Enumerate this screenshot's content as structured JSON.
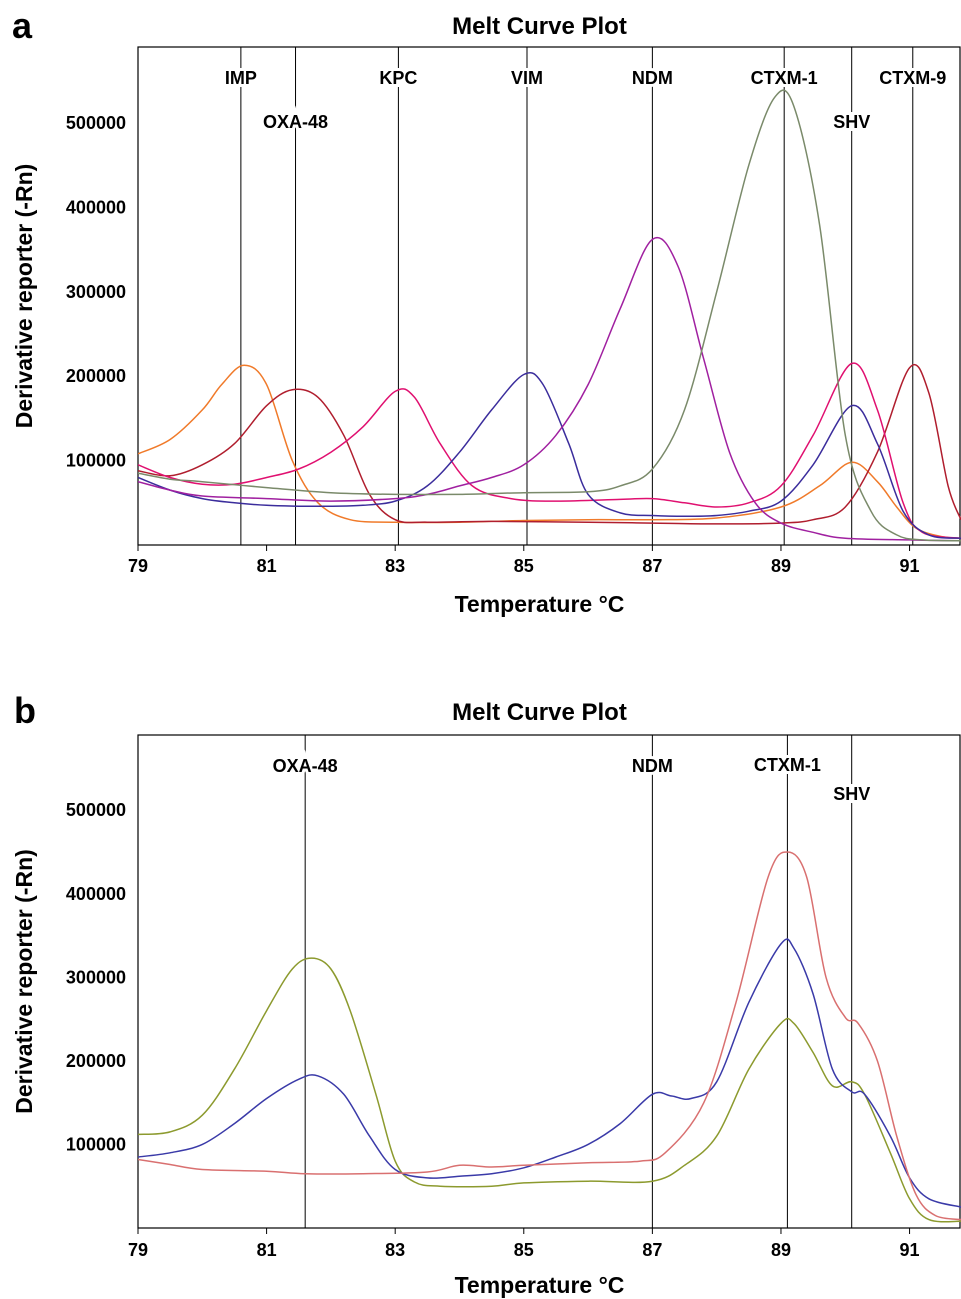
{
  "chart_data": [
    {
      "panel": "a",
      "type": "line",
      "title": "Melt Curve Plot",
      "xlabel": "Temperature °C",
      "ylabel": "Derivative reporter (-Rn)",
      "xlim": [
        79,
        91.8
      ],
      "ylim": [
        0,
        590000
      ],
      "xticks": [
        "79",
        "81",
        "83",
        "85",
        "87",
        "89",
        "91"
      ],
      "yticks": [
        "100000",
        "200000",
        "300000",
        "400000",
        "500000"
      ],
      "markers": [
        {
          "label": "IMP",
          "x": 80.6,
          "level": "high"
        },
        {
          "label": "OXA-48",
          "x": 81.45,
          "level": "low"
        },
        {
          "label": "KPC",
          "x": 83.05,
          "level": "high"
        },
        {
          "label": "VIM",
          "x": 85.05,
          "level": "high"
        },
        {
          "label": "NDM",
          "x": 87.0,
          "level": "high"
        },
        {
          "label": "CTXM-1",
          "x": 89.05,
          "level": "high"
        },
        {
          "label": "SHV",
          "x": 90.1,
          "level": "low"
        },
        {
          "label": "CTXM-9",
          "x": 91.05,
          "level": "high"
        }
      ],
      "series": [
        {
          "color": "#f07a2a",
          "points": [
            [
              79,
              108000
            ],
            [
              79.5,
              125000
            ],
            [
              80,
              160000
            ],
            [
              80.3,
              190000
            ],
            [
              80.65,
              213000
            ],
            [
              81,
              190000
            ],
            [
              81.4,
              100000
            ],
            [
              81.8,
              50000
            ],
            [
              82.3,
              30000
            ],
            [
              83,
              27000
            ],
            [
              84,
              27000
            ],
            [
              85,
              29000
            ],
            [
              86,
              30000
            ],
            [
              87,
              30000
            ],
            [
              88,
              32000
            ],
            [
              89,
              45000
            ],
            [
              89.6,
              70000
            ],
            [
              90.1,
              98000
            ],
            [
              90.5,
              75000
            ],
            [
              90.8,
              45000
            ],
            [
              91.1,
              20000
            ],
            [
              91.5,
              10000
            ],
            [
              91.8,
              8000
            ]
          ]
        },
        {
          "color": "#b01e2e",
          "points": [
            [
              79,
              88000
            ],
            [
              79.5,
              82000
            ],
            [
              80,
              95000
            ],
            [
              80.5,
              120000
            ],
            [
              81,
              165000
            ],
            [
              81.4,
              184000
            ],
            [
              81.8,
              175000
            ],
            [
              82.2,
              130000
            ],
            [
              82.6,
              60000
            ],
            [
              83,
              30000
            ],
            [
              83.5,
              27000
            ],
            [
              84.5,
              28000
            ],
            [
              86,
              27000
            ],
            [
              87,
              26000
            ],
            [
              88,
              25000
            ],
            [
              89,
              26000
            ],
            [
              89.5,
              30000
            ],
            [
              90,
              45000
            ],
            [
              90.5,
              110000
            ],
            [
              91,
              210000
            ],
            [
              91.3,
              180000
            ],
            [
              91.6,
              70000
            ],
            [
              91.8,
              30000
            ]
          ]
        },
        {
          "color": "#e01070",
          "points": [
            [
              79,
              95000
            ],
            [
              79.5,
              80000
            ],
            [
              80,
              72000
            ],
            [
              80.5,
              72000
            ],
            [
              81,
              80000
            ],
            [
              81.5,
              90000
            ],
            [
              82,
              110000
            ],
            [
              82.5,
              140000
            ],
            [
              83,
              182000
            ],
            [
              83.3,
              175000
            ],
            [
              83.7,
              120000
            ],
            [
              84.2,
              70000
            ],
            [
              84.8,
              55000
            ],
            [
              85.5,
              52000
            ],
            [
              86.5,
              54000
            ],
            [
              87,
              55000
            ],
            [
              87.5,
              50000
            ],
            [
              88,
              45000
            ],
            [
              88.5,
              50000
            ],
            [
              89,
              70000
            ],
            [
              89.5,
              130000
            ],
            [
              90.1,
              215000
            ],
            [
              90.5,
              160000
            ],
            [
              90.9,
              50000
            ],
            [
              91.2,
              15000
            ],
            [
              91.8,
              8000
            ]
          ]
        },
        {
          "color": "#3b2d9c",
          "points": [
            [
              79,
              80000
            ],
            [
              79.5,
              65000
            ],
            [
              80,
              55000
            ],
            [
              80.5,
              50000
            ],
            [
              81,
              47000
            ],
            [
              81.5,
              46000
            ],
            [
              82,
              46000
            ],
            [
              82.5,
              47000
            ],
            [
              83,
              52000
            ],
            [
              83.5,
              70000
            ],
            [
              84,
              110000
            ],
            [
              84.5,
              160000
            ],
            [
              85,
              202000
            ],
            [
              85.3,
              190000
            ],
            [
              85.7,
              120000
            ],
            [
              86,
              60000
            ],
            [
              86.5,
              38000
            ],
            [
              87,
              35000
            ],
            [
              87.5,
              34000
            ],
            [
              88,
              35000
            ],
            [
              88.5,
              40000
            ],
            [
              89,
              52000
            ],
            [
              89.5,
              95000
            ],
            [
              90.1,
              165000
            ],
            [
              90.5,
              120000
            ],
            [
              90.9,
              40000
            ],
            [
              91.3,
              12000
            ],
            [
              91.8,
              8000
            ]
          ]
        },
        {
          "color": "#a020a0",
          "points": [
            [
              79,
              75000
            ],
            [
              79.5,
              65000
            ],
            [
              80,
              58000
            ],
            [
              81,
              55000
            ],
            [
              82,
              52000
            ],
            [
              83,
              55000
            ],
            [
              83.5,
              60000
            ],
            [
              84,
              70000
            ],
            [
              84.5,
              80000
            ],
            [
              85,
              95000
            ],
            [
              85.5,
              130000
            ],
            [
              86,
              190000
            ],
            [
              86.5,
              280000
            ],
            [
              87,
              362000
            ],
            [
              87.4,
              330000
            ],
            [
              87.8,
              220000
            ],
            [
              88.2,
              110000
            ],
            [
              88.6,
              50000
            ],
            [
              89,
              26000
            ],
            [
              89.5,
              15000
            ],
            [
              90,
              8000
            ],
            [
              91,
              6000
            ],
            [
              91.8,
              5000
            ]
          ]
        },
        {
          "color": "#7a8a6a",
          "points": [
            [
              79,
              85000
            ],
            [
              79.5,
              78000
            ],
            [
              80,
              75000
            ],
            [
              81,
              68000
            ],
            [
              82,
              62000
            ],
            [
              83,
              60000
            ],
            [
              84,
              60000
            ],
            [
              85,
              62000
            ],
            [
              86,
              63000
            ],
            [
              86.5,
              70000
            ],
            [
              87,
              90000
            ],
            [
              87.5,
              160000
            ],
            [
              88,
              300000
            ],
            [
              88.5,
              450000
            ],
            [
              88.9,
              530000
            ],
            [
              89.2,
              520000
            ],
            [
              89.6,
              380000
            ],
            [
              90,
              130000
            ],
            [
              90.4,
              40000
            ],
            [
              90.8,
              12000
            ],
            [
              91.2,
              6000
            ],
            [
              91.8,
              5000
            ]
          ]
        }
      ]
    },
    {
      "panel": "b",
      "type": "line",
      "title": "Melt Curve Plot",
      "xlabel": "Temperature °C",
      "ylabel": "Derivative reporter (-Rn)",
      "xlim": [
        79,
        91.8
      ],
      "ylim": [
        0,
        590000
      ],
      "xticks": [
        "79",
        "81",
        "83",
        "85",
        "87",
        "89",
        "91"
      ],
      "yticks": [
        "100000",
        "200000",
        "300000",
        "400000",
        "500000"
      ],
      "markers": [
        {
          "label": "OXA-48",
          "x": 81.6,
          "level": "mid"
        },
        {
          "label": "NDM",
          "x": 87.0,
          "level": "mid"
        },
        {
          "label": "CTXM-1",
          "x": 89.1,
          "level": "high"
        },
        {
          "label": "SHV",
          "x": 90.1,
          "level": "low"
        }
      ],
      "series": [
        {
          "color": "#8c9a2e",
          "points": [
            [
              79,
              112000
            ],
            [
              79.5,
              115000
            ],
            [
              80,
              135000
            ],
            [
              80.5,
              190000
            ],
            [
              81,
              260000
            ],
            [
              81.4,
              310000
            ],
            [
              81.7,
              323000
            ],
            [
              82,
              310000
            ],
            [
              82.3,
              260000
            ],
            [
              82.7,
              160000
            ],
            [
              83,
              80000
            ],
            [
              83.3,
              55000
            ],
            [
              83.7,
              50000
            ],
            [
              84.5,
              50000
            ],
            [
              85,
              54000
            ],
            [
              86,
              56000
            ],
            [
              87,
              56000
            ],
            [
              87.5,
              75000
            ],
            [
              88,
              110000
            ],
            [
              88.5,
              190000
            ],
            [
              89,
              245000
            ],
            [
              89.2,
              245000
            ],
            [
              89.5,
              210000
            ],
            [
              89.8,
              170000
            ],
            [
              90.1,
              175000
            ],
            [
              90.3,
              160000
            ],
            [
              90.7,
              90000
            ],
            [
              91,
              35000
            ],
            [
              91.3,
              10000
            ],
            [
              91.8,
              8000
            ]
          ]
        },
        {
          "color": "#3a3aa8",
          "points": [
            [
              79,
              85000
            ],
            [
              79.5,
              90000
            ],
            [
              80,
              100000
            ],
            [
              80.5,
              125000
            ],
            [
              81,
              155000
            ],
            [
              81.5,
              178000
            ],
            [
              81.8,
              182000
            ],
            [
              82.2,
              160000
            ],
            [
              82.6,
              110000
            ],
            [
              83,
              70000
            ],
            [
              83.5,
              60000
            ],
            [
              84,
              62000
            ],
            [
              84.5,
              65000
            ],
            [
              85,
              72000
            ],
            [
              85.5,
              85000
            ],
            [
              86,
              100000
            ],
            [
              86.5,
              125000
            ],
            [
              87,
              160000
            ],
            [
              87.3,
              158000
            ],
            [
              87.6,
              155000
            ],
            [
              88,
              175000
            ],
            [
              88.5,
              270000
            ],
            [
              89,
              340000
            ],
            [
              89.2,
              335000
            ],
            [
              89.5,
              280000
            ],
            [
              89.8,
              190000
            ],
            [
              90.1,
              163000
            ],
            [
              90.3,
              160000
            ],
            [
              90.7,
              110000
            ],
            [
              91,
              60000
            ],
            [
              91.3,
              35000
            ],
            [
              91.8,
              25000
            ]
          ]
        },
        {
          "color": "#d97070",
          "points": [
            [
              79,
              82000
            ],
            [
              79.5,
              76000
            ],
            [
              80,
              70000
            ],
            [
              81,
              68000
            ],
            [
              81.6,
              65000
            ],
            [
              82.5,
              65000
            ],
            [
              83.5,
              67000
            ],
            [
              84,
              75000
            ],
            [
              84.5,
              73000
            ],
            [
              85,
              75000
            ],
            [
              86,
              78000
            ],
            [
              86.8,
              80000
            ],
            [
              87.2,
              90000
            ],
            [
              87.8,
              150000
            ],
            [
              88.3,
              270000
            ],
            [
              88.8,
              420000
            ],
            [
              89.1,
              450000
            ],
            [
              89.4,
              420000
            ],
            [
              89.7,
              300000
            ],
            [
              90,
              252000
            ],
            [
              90.2,
              245000
            ],
            [
              90.5,
              200000
            ],
            [
              90.8,
              110000
            ],
            [
              91.1,
              40000
            ],
            [
              91.4,
              15000
            ],
            [
              91.8,
              10000
            ]
          ]
        }
      ]
    }
  ]
}
